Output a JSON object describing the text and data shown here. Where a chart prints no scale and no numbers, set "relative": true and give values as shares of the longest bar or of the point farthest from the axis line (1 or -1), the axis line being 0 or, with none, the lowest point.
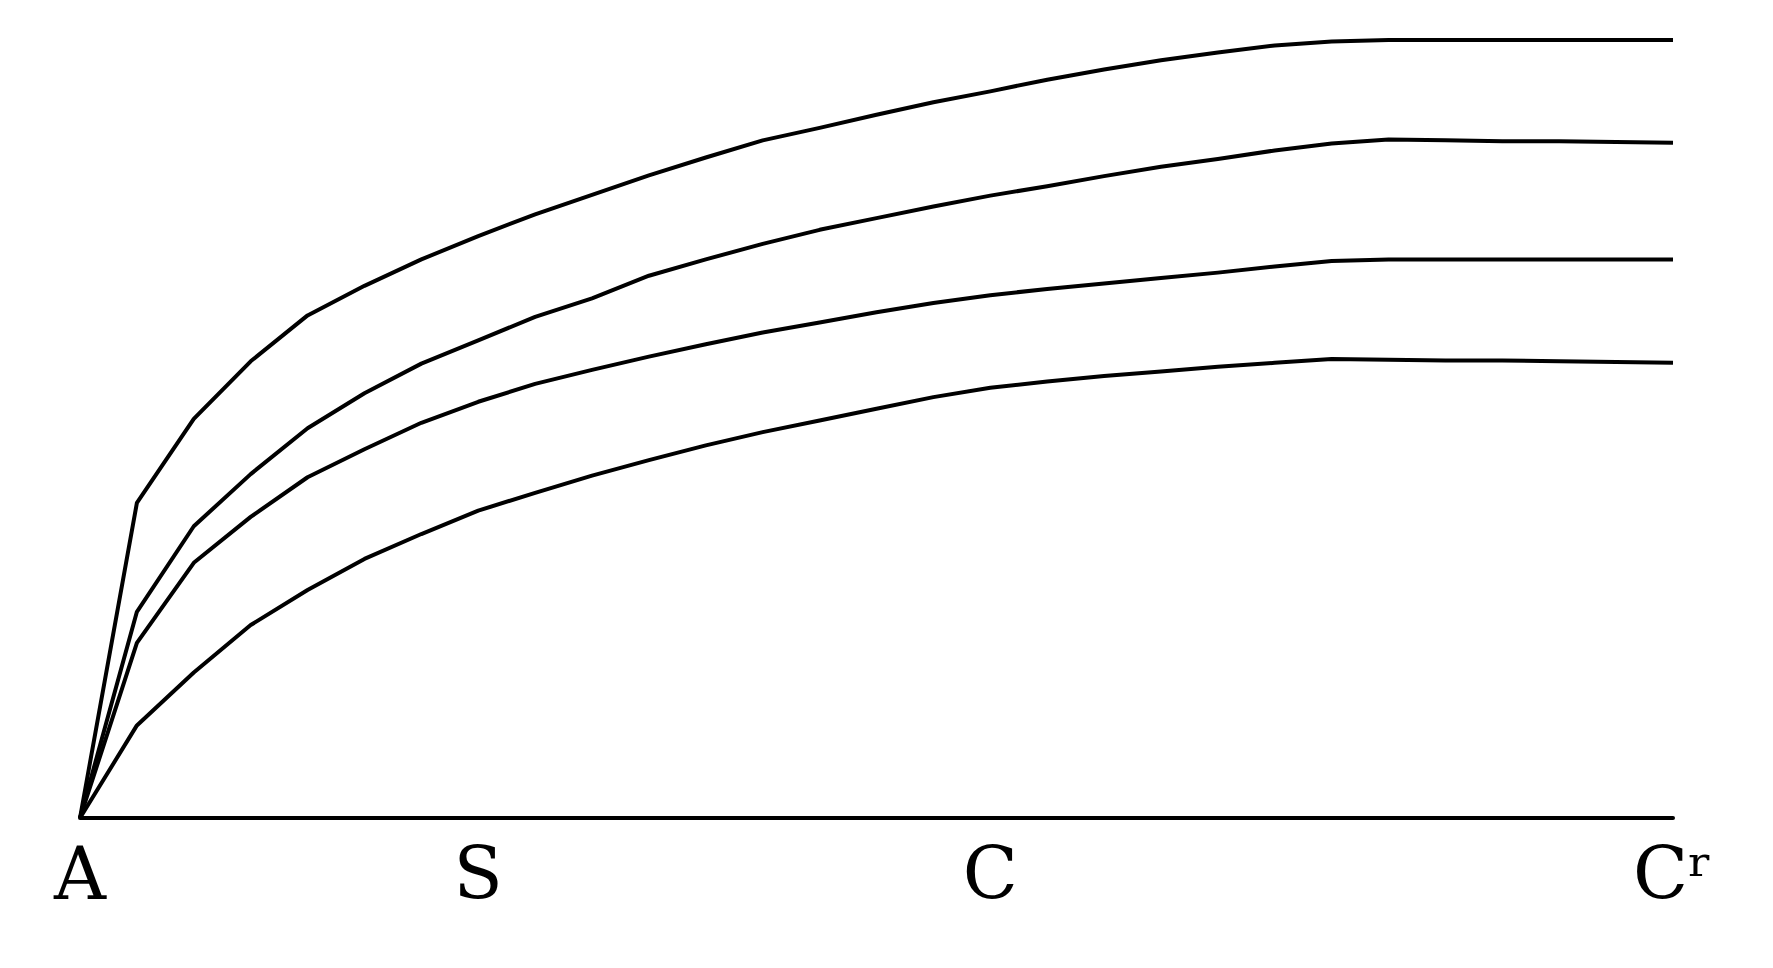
{
  "chart_data": {
    "type": "line",
    "relative": true,
    "marker": "none",
    "categories": [
      "A",
      null,
      null,
      null,
      null,
      null,
      null,
      "S",
      null,
      null,
      null,
      null,
      null,
      null,
      null,
      null,
      "C",
      null,
      null,
      null,
      null,
      null,
      null,
      null,
      null,
      null,
      null,
      null,
      "Cʳ"
    ],
    "series": [
      {
        "color": "#000000",
        "values": [
          0,
          0.405,
          0.513,
          0.587,
          0.646,
          0.684,
          0.718,
          0.748,
          0.776,
          0.801,
          0.826,
          0.849,
          0.871,
          0.887,
          0.904,
          0.92,
          0.934,
          0.949,
          0.962,
          0.974,
          0.984,
          0.993,
          0.998,
          1,
          1,
          1,
          1,
          1,
          1
        ]
      },
      {
        "color": "#000000",
        "values": [
          0,
          0.265,
          0.375,
          0.442,
          0.501,
          0.546,
          0.584,
          0.614,
          0.644,
          0.668,
          0.697,
          0.718,
          0.738,
          0.756,
          0.771,
          0.786,
          0.8,
          0.812,
          0.825,
          0.837,
          0.847,
          0.858,
          0.867,
          0.872,
          0.871,
          0.87,
          0.87,
          0.869,
          0.868
        ]
      },
      {
        "color": "#000000",
        "values": [
          0,
          0.225,
          0.328,
          0.387,
          0.438,
          0.474,
          0.508,
          0.535,
          0.558,
          0.576,
          0.593,
          0.609,
          0.624,
          0.637,
          0.65,
          0.662,
          0.672,
          0.68,
          0.687,
          0.694,
          0.701,
          0.709,
          0.716,
          0.718,
          0.718,
          0.718,
          0.718,
          0.718,
          0.718
        ]
      },
      {
        "color": "#000000",
        "values": [
          0,
          0.119,
          0.187,
          0.248,
          0.293,
          0.333,
          0.365,
          0.395,
          0.418,
          0.44,
          0.46,
          0.479,
          0.496,
          0.511,
          0.526,
          0.541,
          0.553,
          0.561,
          0.568,
          0.574,
          0.58,
          0.585,
          0.59,
          0.589,
          0.588,
          0.588,
          0.587,
          0.586,
          0.585
        ]
      }
    ]
  }
}
